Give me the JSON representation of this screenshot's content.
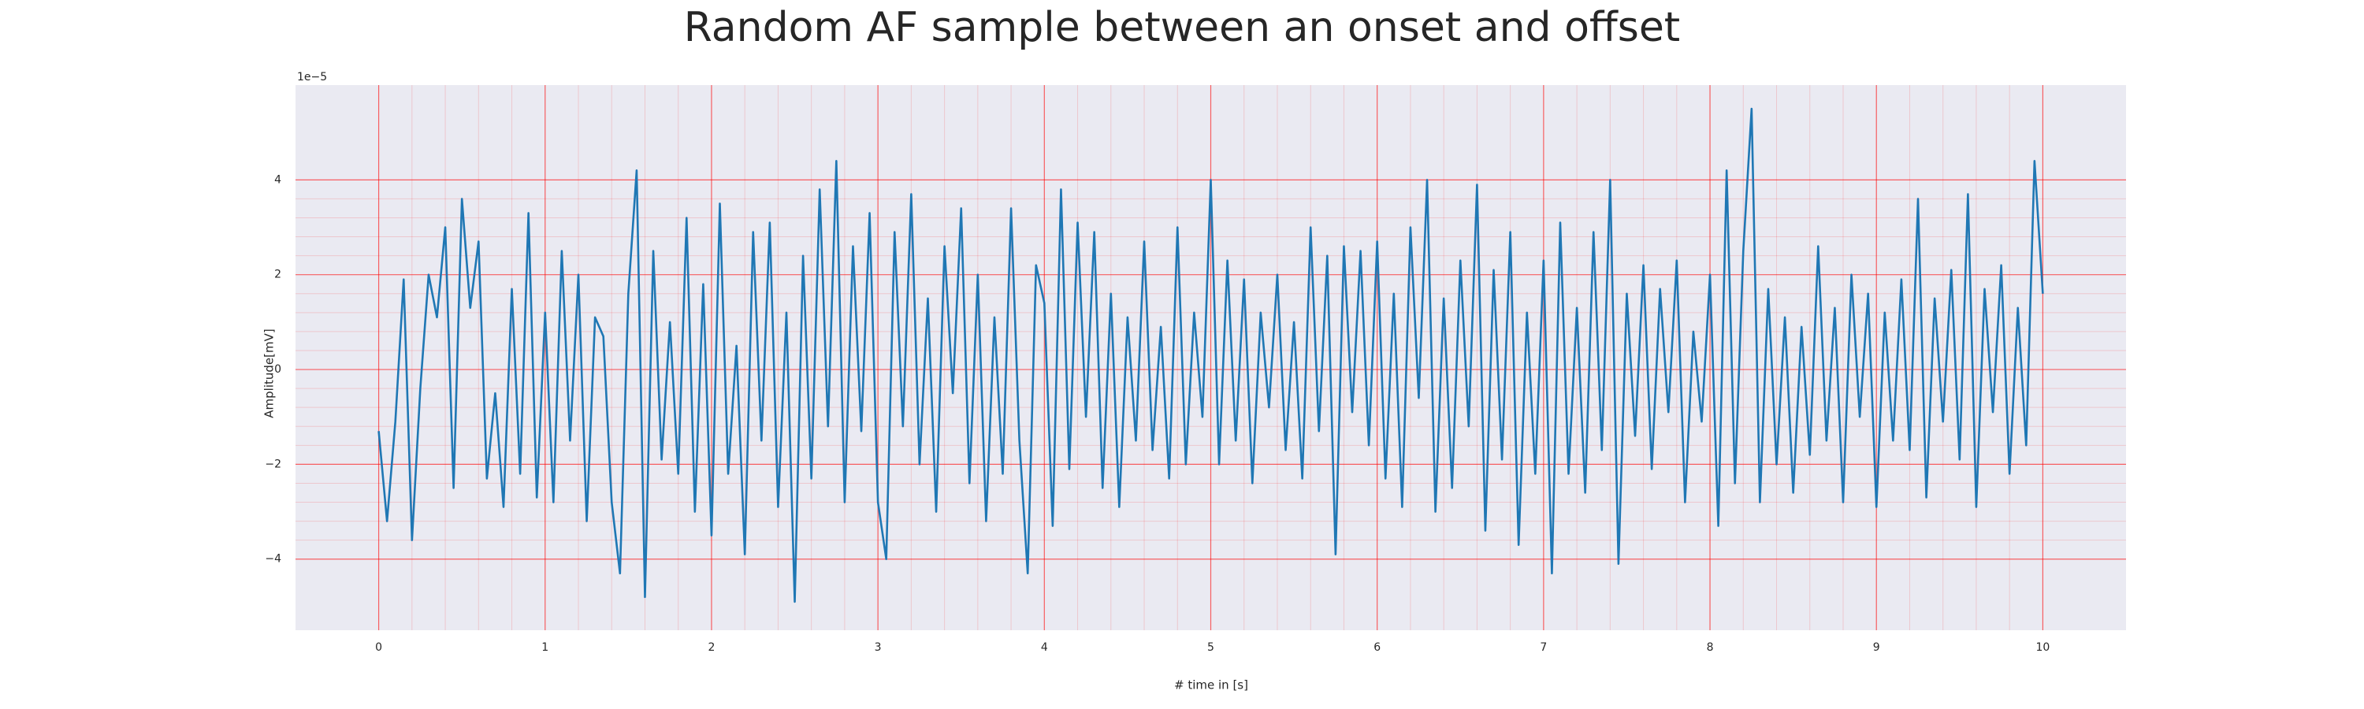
{
  "chart_data": {
    "type": "line",
    "title": "Random AF sample between an onset and offset",
    "x_label": "# time in [s]",
    "y_label": "Amplitude[mV]",
    "y_offset_label": "1e−5",
    "xlim": [
      -0.5,
      10.5
    ],
    "ylim": [
      -5.5,
      6.0
    ],
    "xticks": [
      0,
      1,
      2,
      3,
      4,
      5,
      6,
      7,
      8,
      9,
      10
    ],
    "yticks": [
      {
        "value": -4,
        "label": "−4"
      },
      {
        "value": -2,
        "label": "−2"
      },
      0,
      2,
      4
    ],
    "grid": true,
    "grid_color": "#ff0000",
    "minor_grid": true,
    "background": "#eaeaf2",
    "x": [
      0,
      0.05,
      0.1,
      0.15,
      0.2,
      0.25,
      0.3,
      0.35,
      0.4,
      0.45,
      0.5,
      0.55,
      0.6,
      0.65,
      0.7,
      0.75,
      0.8,
      0.85,
      0.9,
      0.95,
      1,
      1.05,
      1.1,
      1.15,
      1.2,
      1.25,
      1.3,
      1.35,
      1.4,
      1.45,
      1.5,
      1.55,
      1.6,
      1.65,
      1.7,
      1.75,
      1.8,
      1.85,
      1.9,
      1.95,
      2,
      2.05,
      2.1,
      2.15,
      2.2,
      2.25,
      2.3,
      2.35,
      2.4,
      2.45,
      2.5,
      2.55,
      2.6,
      2.65,
      2.7,
      2.75,
      2.8,
      2.85,
      2.9,
      2.95,
      3,
      3.05,
      3.1,
      3.15,
      3.2,
      3.25,
      3.3,
      3.35,
      3.4,
      3.45,
      3.5,
      3.55,
      3.6,
      3.65,
      3.7,
      3.75,
      3.8,
      3.85,
      3.9,
      3.95,
      4,
      4.05,
      4.1,
      4.15,
      4.2,
      4.25,
      4.3,
      4.35,
      4.4,
      4.45,
      4.5,
      4.55,
      4.6,
      4.65,
      4.7,
      4.75,
      4.8,
      4.85,
      4.9,
      4.95,
      5,
      5.05,
      5.1,
      5.15,
      5.2,
      5.25,
      5.3,
      5.35,
      5.4,
      5.45,
      5.5,
      5.55,
      5.6,
      5.65,
      5.7,
      5.75,
      5.8,
      5.85,
      5.9,
      5.95,
      6,
      6.05,
      6.1,
      6.15,
      6.2,
      6.25,
      6.3,
      6.35,
      6.4,
      6.45,
      6.5,
      6.55,
      6.6,
      6.65,
      6.7,
      6.75,
      6.8,
      6.85,
      6.9,
      6.95,
      7,
      7.05,
      7.1,
      7.15,
      7.2,
      7.25,
      7.3,
      7.35,
      7.4,
      7.45,
      7.5,
      7.55,
      7.6,
      7.65,
      7.7,
      7.75,
      7.8,
      7.85,
      7.9,
      7.95,
      8,
      8.05,
      8.1,
      8.15,
      8.2,
      8.25,
      8.3,
      8.35,
      8.4,
      8.45,
      8.5,
      8.55,
      8.6,
      8.65,
      8.7,
      8.75,
      8.8,
      8.85,
      8.9,
      8.95,
      9,
      9.05,
      9.1,
      9.15,
      9.2,
      9.25,
      9.3,
      9.35,
      9.4,
      9.45,
      9.5,
      9.55,
      9.6,
      9.65,
      9.7,
      9.75,
      9.8,
      9.85,
      9.9,
      9.95,
      10
    ],
    "series": [
      {
        "color": "#1f77b4",
        "values": [
          -1.3,
          -3.2,
          -1.1,
          1.9,
          -3.6,
          -0.4,
          2.0,
          1.1,
          3.0,
          -2.5,
          3.6,
          1.3,
          2.7,
          -2.3,
          -0.5,
          -2.9,
          1.7,
          -2.2,
          3.3,
          -2.7,
          1.2,
          -2.8,
          2.5,
          -1.5,
          2.0,
          -3.2,
          1.1,
          0.7,
          -2.8,
          -4.3,
          1.6,
          4.2,
          -4.8,
          2.5,
          -1.9,
          1.0,
          -2.2,
          3.2,
          -3.0,
          1.8,
          -3.5,
          3.5,
          -2.2,
          0.5,
          -3.9,
          2.9,
          -1.5,
          3.1,
          -2.9,
          1.2,
          -4.9,
          2.4,
          -2.3,
          3.8,
          -1.2,
          4.4,
          -2.8,
          2.6,
          -1.3,
          3.3,
          -2.8,
          -4.0,
          2.9,
          -1.2,
          3.7,
          -2.0,
          1.5,
          -3.0,
          2.6,
          -0.5,
          3.4,
          -2.4,
          2.0,
          -3.2,
          1.1,
          -2.2,
          3.4,
          -1.5,
          -4.3,
          2.2,
          1.4,
          -3.3,
          3.8,
          -2.1,
          3.1,
          -1.0,
          2.9,
          -2.5,
          1.6,
          -2.9,
          1.1,
          -1.5,
          2.7,
          -1.7,
          0.9,
          -2.3,
          3.0,
          -2.0,
          1.2,
          -1.0,
          4.0,
          -2.0,
          2.3,
          -1.5,
          1.9,
          -2.4,
          1.2,
          -0.8,
          2.0,
          -1.7,
          1.0,
          -2.3,
          3.0,
          -1.3,
          2.4,
          -3.9,
          2.6,
          -0.9,
          2.5,
          -1.6,
          2.7,
          -2.3,
          1.6,
          -2.9,
          3.0,
          -0.6,
          4.0,
          -3.0,
          1.5,
          -2.5,
          2.3,
          -1.2,
          3.9,
          -3.4,
          2.1,
          -1.9,
          2.9,
          -3.7,
          1.2,
          -2.2,
          2.3,
          -4.3,
          3.1,
          -2.2,
          1.3,
          -2.6,
          2.9,
          -1.7,
          4.0,
          -4.1,
          1.6,
          -1.4,
          2.2,
          -2.1,
          1.7,
          -0.9,
          2.3,
          -2.8,
          0.8,
          -1.1,
          2.0,
          -3.3,
          4.2,
          -2.4,
          2.5,
          5.5,
          -2.8,
          1.7,
          -2.0,
          1.1,
          -2.6,
          0.9,
          -1.8,
          2.6,
          -1.5,
          1.3,
          -2.8,
          2.0,
          -1.0,
          1.6,
          -2.9,
          1.2,
          -1.5,
          1.9,
          -1.7,
          3.6,
          -2.7,
          1.5,
          -1.1,
          2.1,
          -1.9,
          3.7,
          -2.9,
          1.7,
          -0.9,
          2.2,
          -2.2,
          1.3,
          -1.6,
          4.4,
          1.6
        ]
      }
    ]
  }
}
